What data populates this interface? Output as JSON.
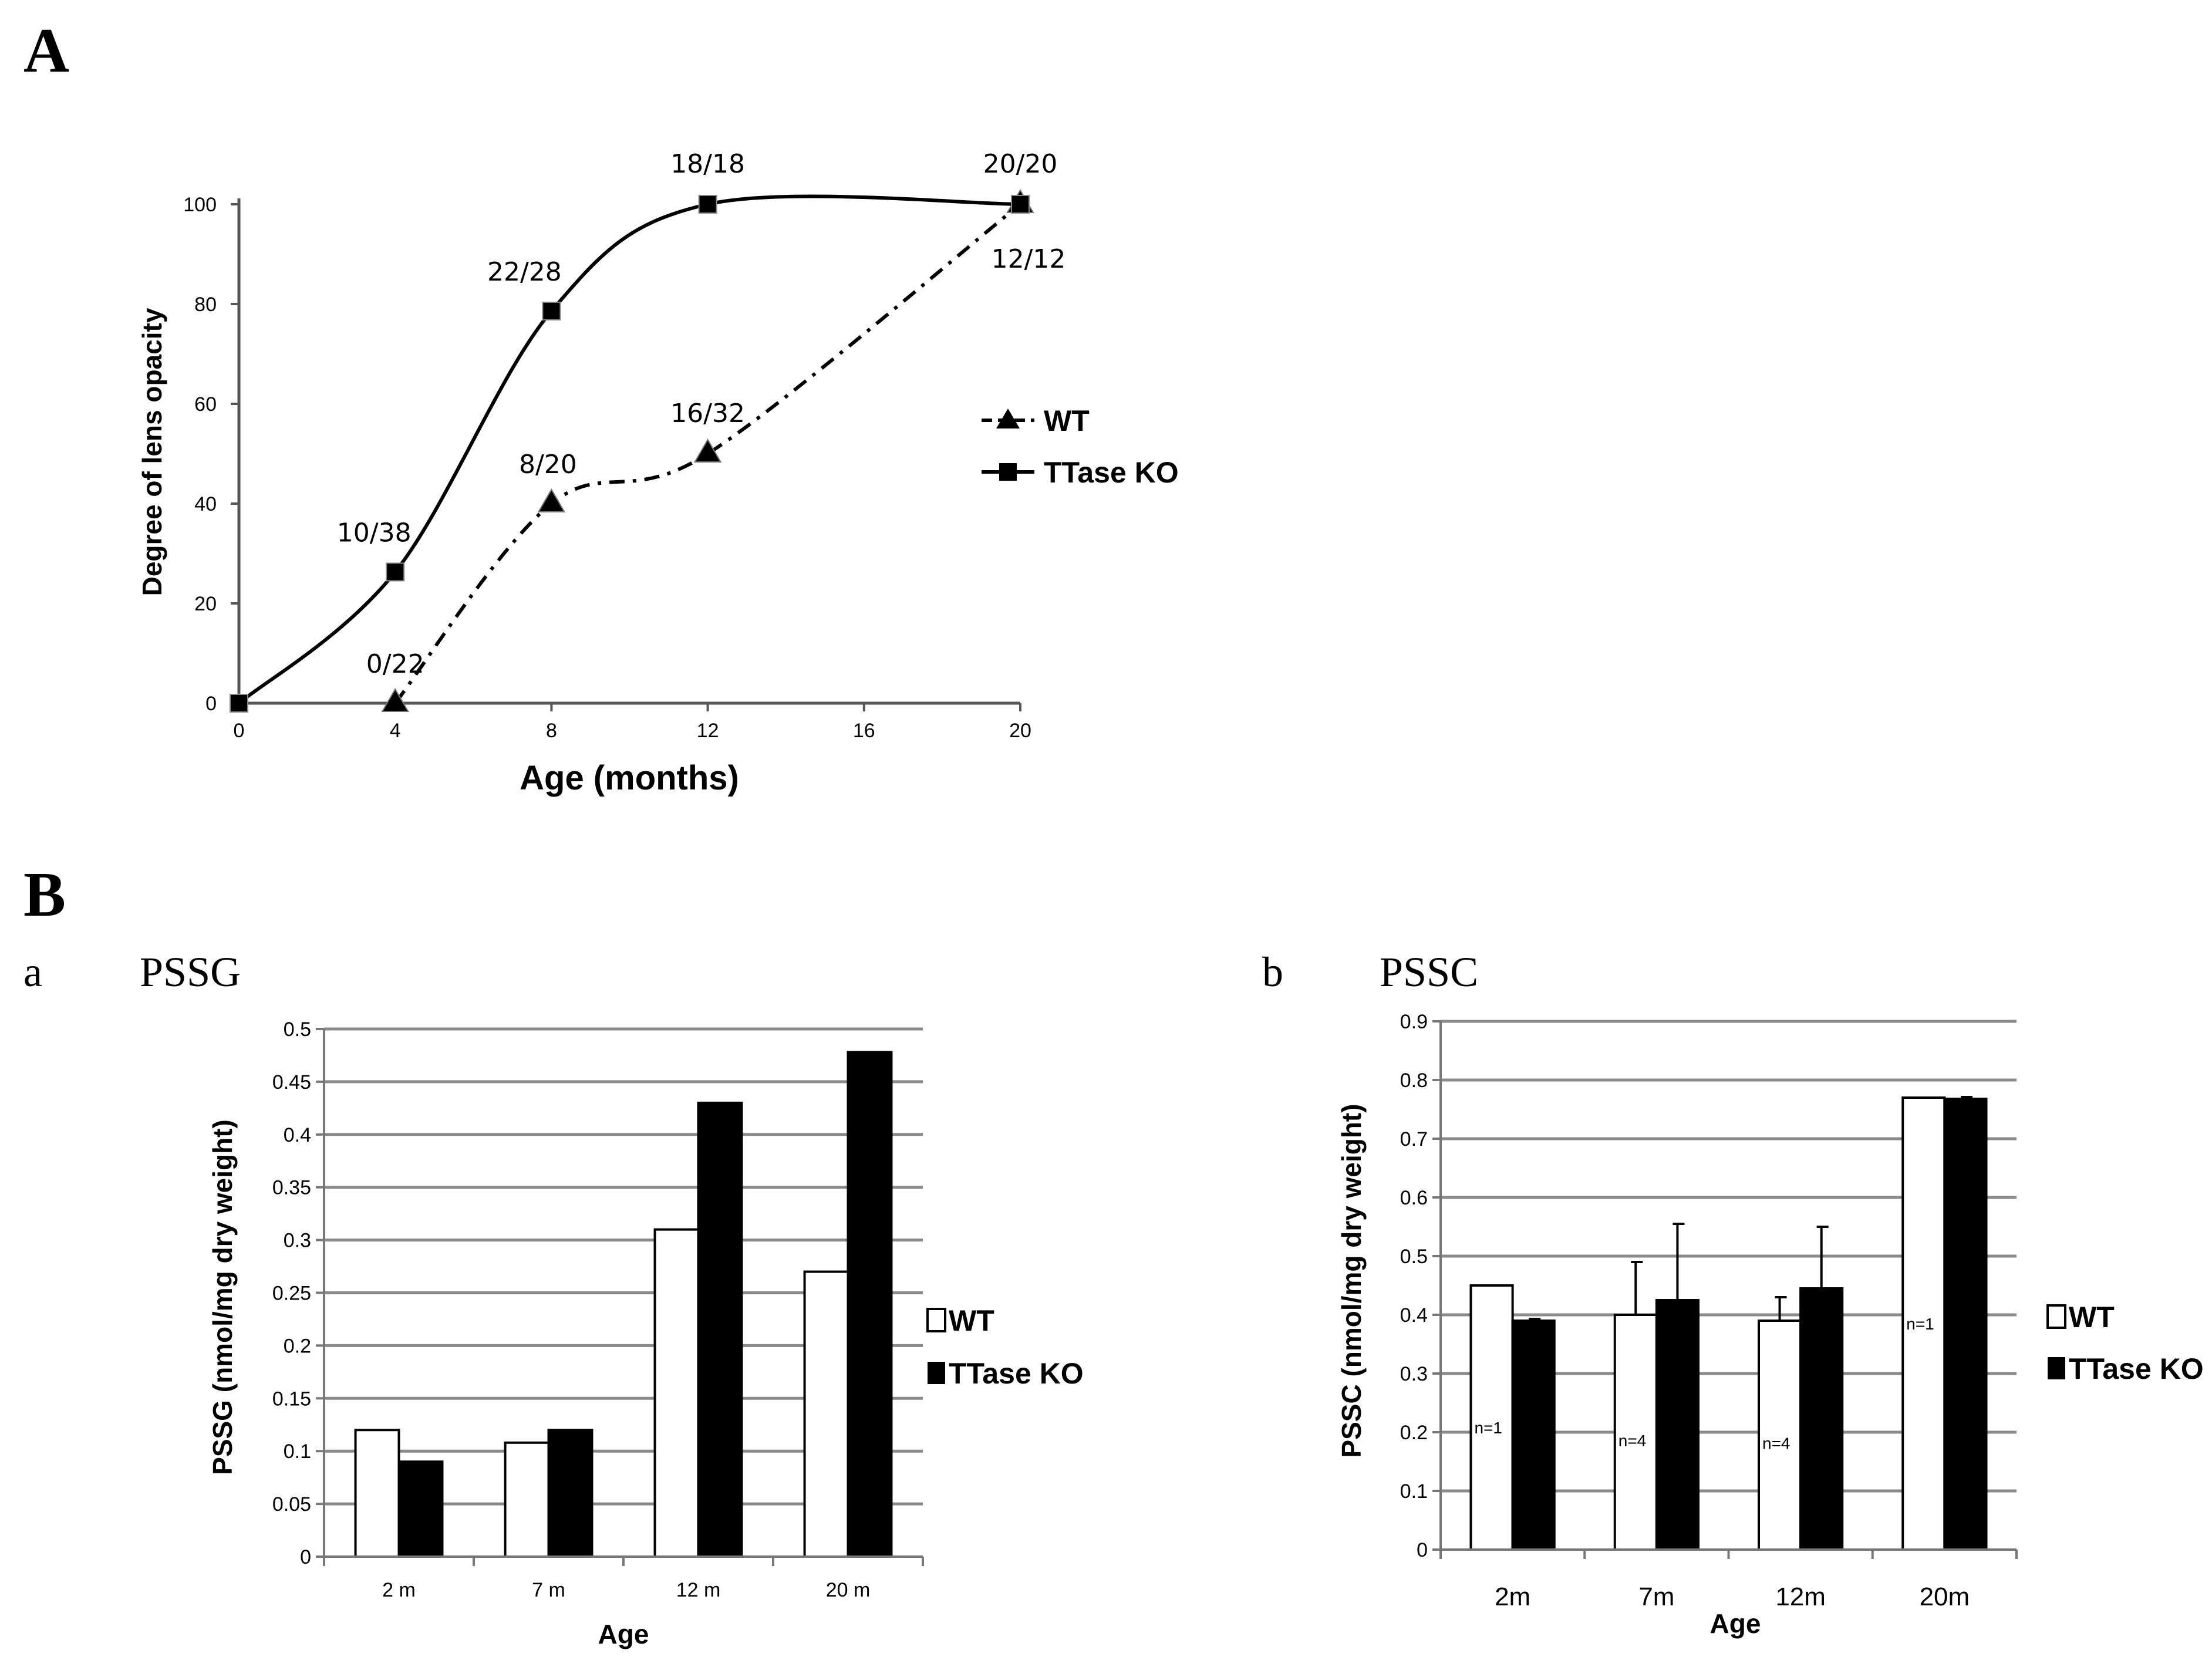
{
  "panels": {
    "A": "A",
    "B": "B",
    "a": "a",
    "b": "b"
  },
  "chart_data": [
    {
      "id": "A",
      "type": "line",
      "title": "",
      "xlabel": "Age (months)",
      "ylabel": "Degree of lens opacity",
      "xlim": [
        0,
        20
      ],
      "ylim": [
        0,
        100
      ],
      "xticks": [
        0,
        4,
        8,
        12,
        16,
        20
      ],
      "yticks": [
        0,
        20,
        40,
        60,
        80,
        100
      ],
      "legend": [
        "WT",
        "TTase KO"
      ],
      "series": [
        {
          "name": "WT",
          "style": "dash-dot",
          "marker": "triangle",
          "x": [
            4,
            8,
            12,
            20
          ],
          "y": [
            0,
            40,
            50,
            100
          ],
          "labels": [
            "0/22",
            "8/20",
            "16/32",
            "12/12"
          ]
        },
        {
          "name": "TTase KO",
          "style": "solid",
          "marker": "square",
          "x": [
            0,
            4,
            8,
            12,
            20
          ],
          "y": [
            0,
            26.3,
            78.6,
            100,
            100
          ],
          "labels": [
            "",
            "10/38",
            "22/28",
            "18/18",
            "20/20"
          ]
        }
      ]
    },
    {
      "id": "Ba",
      "type": "bar",
      "title": "PSSG",
      "xlabel": "Age",
      "ylabel": "PSSG (nmol/mg dry weight)",
      "ylim": [
        0,
        0.5
      ],
      "yticks": [
        "0",
        "0.05",
        "0.1",
        "0.15",
        "0.2",
        "0.25",
        "0.3",
        "0.35",
        "0.4",
        "0.45",
        "0.5"
      ],
      "categories": [
        "2 m",
        "7 m",
        "12 m",
        "20 m"
      ],
      "legend": [
        "WT",
        "TTase KO"
      ],
      "series": [
        {
          "name": "WT",
          "values": [
            0.12,
            0.108,
            0.31,
            0.27
          ]
        },
        {
          "name": "TTase KO",
          "values": [
            0.09,
            0.12,
            0.43,
            0.478
          ]
        }
      ]
    },
    {
      "id": "Bb",
      "type": "bar",
      "title": "PSSC",
      "xlabel": "Age",
      "ylabel": "PSSC (nmol/mg dry weight)",
      "ylim": [
        0,
        0.9
      ],
      "yticks": [
        "0",
        "0.1",
        "0.2",
        "0.3",
        "0.4",
        "0.5",
        "0.6",
        "0.7",
        "0.8",
        "0.9"
      ],
      "categories": [
        "2m",
        "7m",
        "12m",
        "20m"
      ],
      "legend": [
        "WT",
        "TTase KO"
      ],
      "series": [
        {
          "name": "WT",
          "values": [
            0.45,
            0.4,
            0.39,
            0.77
          ],
          "errors": [
            0,
            0.09,
            0.04,
            0
          ]
        },
        {
          "name": "TTase KO",
          "values": [
            0.39,
            0.425,
            0.445,
            0.768
          ],
          "errors": [
            0.003,
            0.13,
            0.105,
            0.003
          ]
        }
      ],
      "annotations": [
        "n=1",
        "n=4",
        "n=4",
        "n=1"
      ]
    }
  ]
}
